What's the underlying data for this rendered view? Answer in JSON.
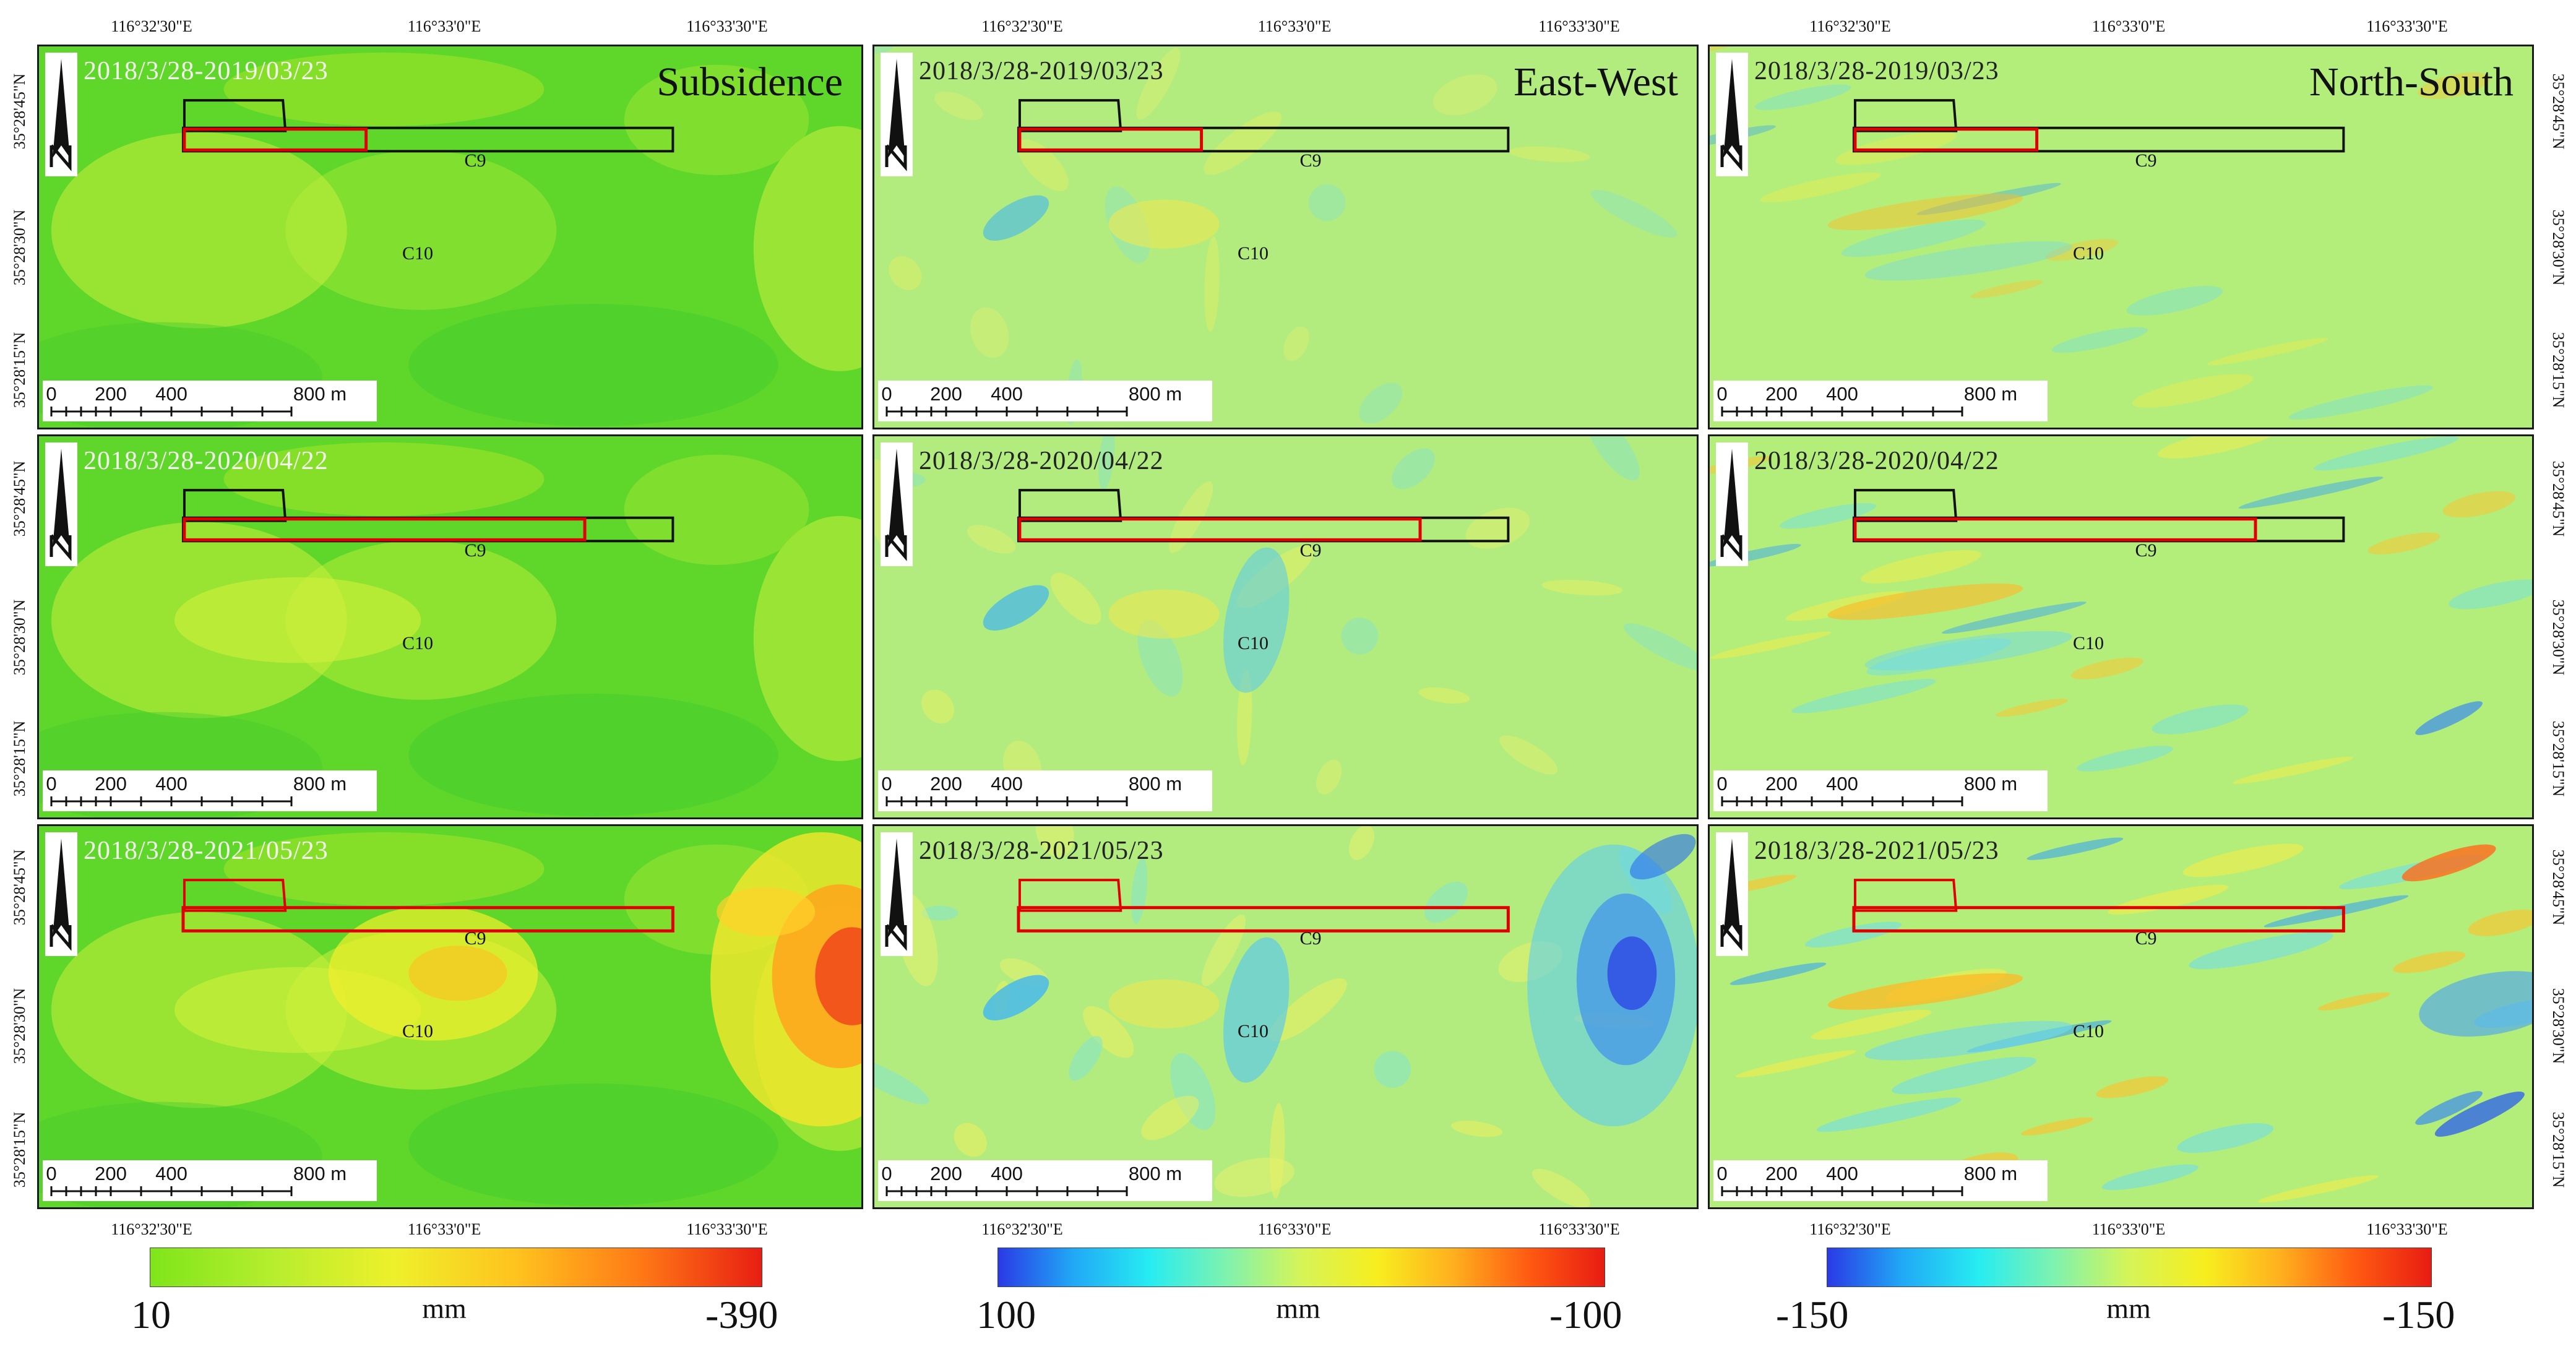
{
  "coords": {
    "lon": [
      "116°32'30\"E",
      "116°33'0\"E",
      "116°33'30\"E"
    ],
    "lat": [
      "35°28'45\"N",
      "35°28'30\"N",
      "35°28'15\"N"
    ]
  },
  "columns": [
    {
      "title": "Subsidence",
      "palette": "subsidence"
    },
    {
      "title": "East-West",
      "palette": "ew"
    },
    {
      "title": "North-South",
      "palette": "ns"
    }
  ],
  "dates": [
    "2018/3/28-2019/03/23",
    "2018/3/28-2020/04/22",
    "2018/3/28-2021/05/23"
  ],
  "labels": {
    "c9": "C9",
    "c10": "C10"
  },
  "scalebar": {
    "ticks": [
      "0",
      "200",
      "400",
      "800 m"
    ]
  },
  "legends": [
    {
      "min": "10",
      "max": "-390",
      "unit": "mm",
      "colors": [
        "#7fe51a",
        "#b6ee2e",
        "#eef02a",
        "#ffc21e",
        "#ff7a16",
        "#e81e12"
      ]
    },
    {
      "min": "100",
      "max": "-100",
      "unit": "mm",
      "colors": [
        "#2a3ae6",
        "#21a9f6",
        "#27ecf2",
        "#7ef2b0",
        "#d6f458",
        "#f7ee1f",
        "#ffb01e",
        "#ff5a12",
        "#e81c12"
      ]
    },
    {
      "min": "-150",
      "max": "-150",
      "unit": "mm",
      "colors": [
        "#2a3ae6",
        "#21a9f6",
        "#27ecf2",
        "#7ef2b0",
        "#d6f458",
        "#f7ee1f",
        "#ffb01e",
        "#ff5a12",
        "#e81c12"
      ]
    }
  ],
  "colors": {
    "subsidence_base": "#5fd72a",
    "ew_base": "#b2ec7e",
    "ns_base": "#b4ee7a",
    "outline_black": "#111111",
    "outline_red": "#e00000"
  }
}
